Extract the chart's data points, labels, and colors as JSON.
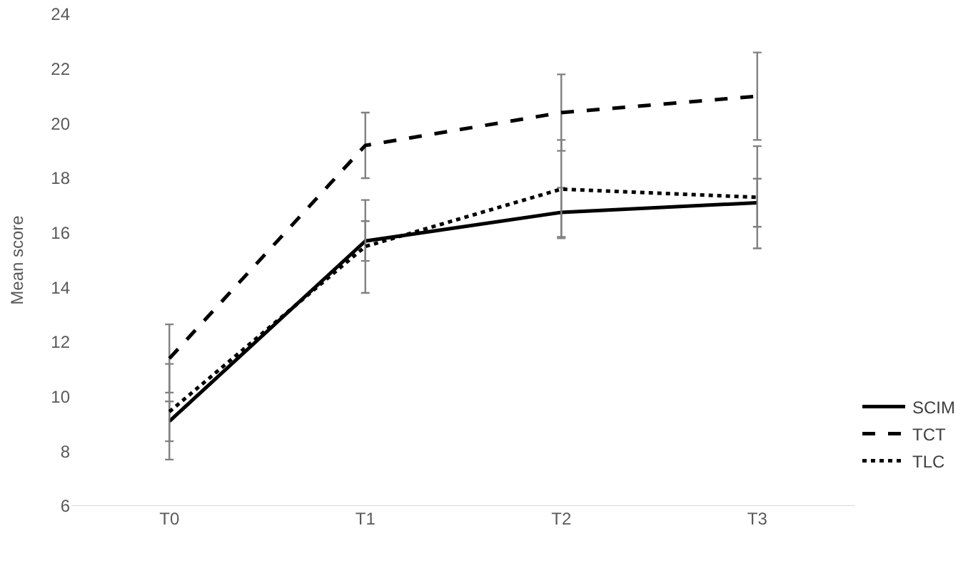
{
  "chart_data": {
    "type": "line",
    "ylabel": "Mean score",
    "categories": [
      "T0",
      "T1",
      "T2",
      "T3"
    ],
    "ylim": [
      6,
      24
    ],
    "yticks": [
      6,
      8,
      10,
      12,
      14,
      16,
      18,
      20,
      22,
      24
    ],
    "grid": false,
    "legend": "bottom right",
    "marker": "none",
    "series": [
      {
        "name": "SCIM",
        "color": "#000000",
        "line_style": "solid",
        "values": [
          9.1,
          15.7,
          16.75,
          17.1
        ],
        "errors": [
          0.73,
          0.73,
          0.9,
          0.88
        ]
      },
      {
        "name": "TCT",
        "color": "#000000",
        "line_style": "dashed",
        "values": [
          11.4,
          19.2,
          20.4,
          21.0
        ],
        "errors": [
          1.25,
          1.2,
          1.4,
          1.6
        ]
      },
      {
        "name": "TLC",
        "color": "#000000",
        "line_style": "dotted",
        "values": [
          9.45,
          15.5,
          17.6,
          17.3
        ],
        "errors": [
          1.75,
          1.7,
          1.8,
          1.87
        ]
      }
    ]
  }
}
